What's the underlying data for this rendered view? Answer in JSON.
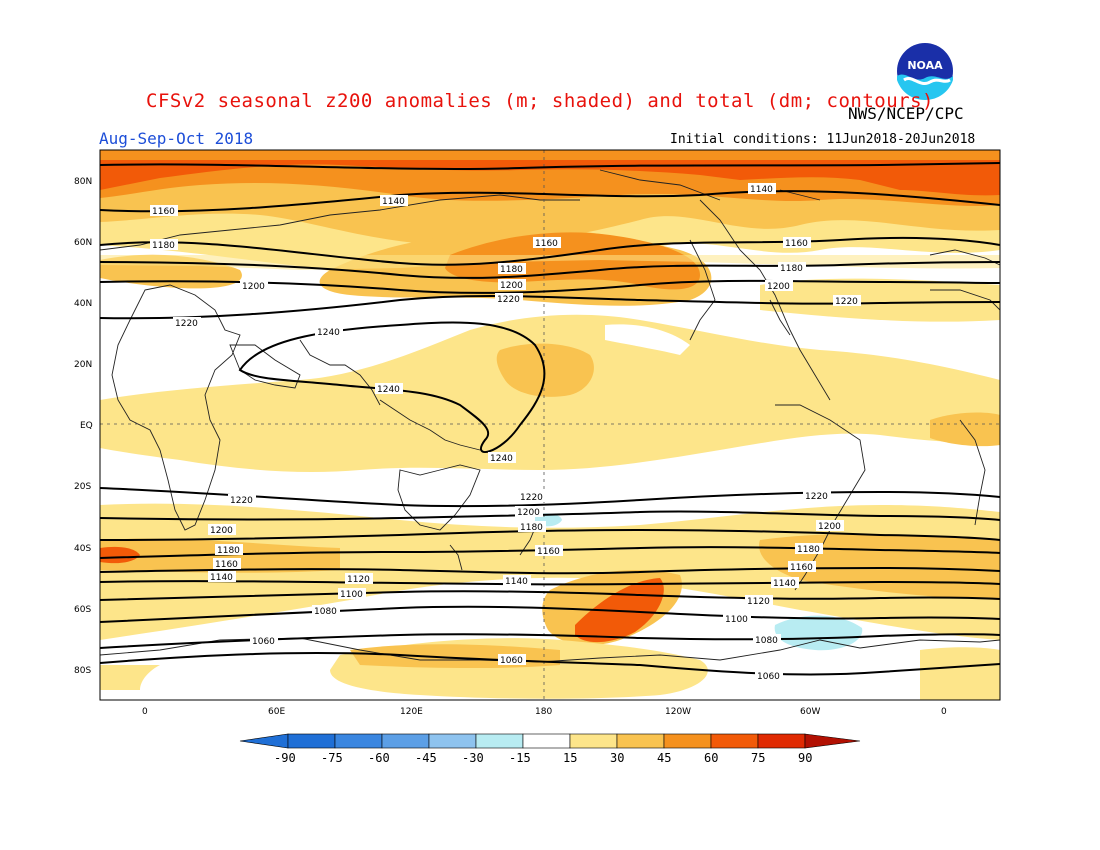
{
  "title": "CFSv2 seasonal z200 anomalies (m; shaded) and total (dm; contours)",
  "agency": "NWS/NCEP/CPC",
  "season": "Aug-Sep-Oct 2018",
  "initial_conditions": "Initial conditions: 11Jun2018-20Jun2018",
  "logo_text": "NOAA",
  "colors": {
    "title": "#e8120c",
    "season": "#1d4ed8",
    "neg90": "#1f6fd6",
    "neg75": "#3a86e0",
    "neg60": "#5c9fe6",
    "neg45": "#8ec3ef",
    "neg30": "#b8ecf2",
    "neutral": "#ffffff",
    "pos15": "#fde58a",
    "pos30": "#f9c350",
    "pos45": "#f5911e",
    "pos60": "#f25a08",
    "pos75": "#e02a02",
    "pos90": "#b21002"
  },
  "map": {
    "lat_labels": [
      "80N",
      "60N",
      "40N",
      "20N",
      "EQ",
      "20S",
      "40S",
      "60S",
      "80S"
    ],
    "lon_labels": [
      "0",
      "60E",
      "120E",
      "180",
      "120W",
      "60W",
      "0"
    ],
    "contour_labels": {
      "c1060": "1060",
      "c1080": "1080",
      "c1100": "1100",
      "c1120": "1120",
      "c1140": "1140",
      "c1160": "1160",
      "c1180": "1180",
      "c1200": "1200",
      "c1220": "1220",
      "c1240": "1240"
    }
  },
  "colorbar": {
    "ticks": [
      "-90",
      "-75",
      "-60",
      "-45",
      "-30",
      "-15",
      "15",
      "30",
      "45",
      "60",
      "75",
      "90"
    ]
  }
}
